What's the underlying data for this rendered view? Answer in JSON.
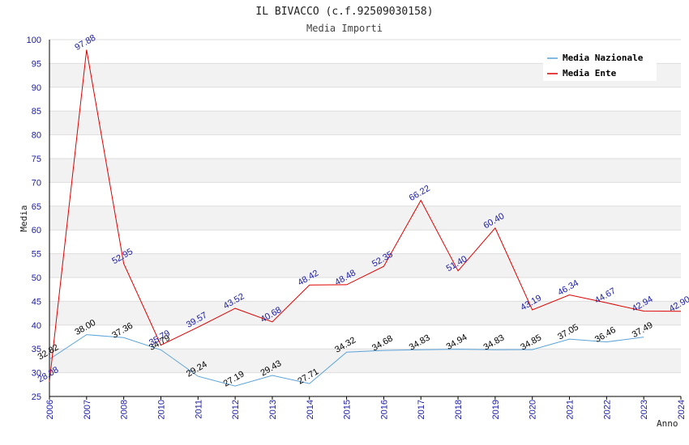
{
  "chart_data": {
    "type": "line",
    "title": "IL BIVACCO (c.f.92509030158)",
    "subtitle": "Media Importi",
    "xlabel": "Anno",
    "ylabel": "Media",
    "categories": [
      "2006",
      "2007",
      "2008",
      "2010",
      "2011",
      "2012",
      "2013",
      "2014",
      "2015",
      "2016",
      "2017",
      "2018",
      "2019",
      "2020",
      "2021",
      "2022",
      "2023",
      "2024"
    ],
    "yticks": [
      25,
      30,
      35,
      40,
      45,
      50,
      55,
      60,
      65,
      70,
      75,
      80,
      85,
      90,
      95,
      100
    ],
    "ylim": [
      25,
      100
    ],
    "grid": true,
    "legend_position": "top-right",
    "series": [
      {
        "name": "Media Nazionale",
        "color": "#5ba3d9",
        "label_color": "#000000",
        "values": [
          32.82,
          38.0,
          37.36,
          34.79,
          29.24,
          27.19,
          29.43,
          27.71,
          34.32,
          34.68,
          34.83,
          34.94,
          34.83,
          34.85,
          37.05,
          36.46,
          37.49,
          null
        ],
        "labels": [
          "32.82",
          "38.00",
          "37.36",
          "34.79",
          "29.24",
          "27.19",
          "29.43",
          "27.71",
          "34.32",
          "34.68",
          "34.83",
          "34.94",
          "34.83",
          "34.85",
          "37.05",
          "36.46",
          "37.49",
          ""
        ]
      },
      {
        "name": "Media Ente",
        "color": "#e00000",
        "label_color": "#1a1aa6",
        "values": [
          28.08,
          97.88,
          52.95,
          35.79,
          39.57,
          43.52,
          40.68,
          48.42,
          48.48,
          52.35,
          66.22,
          51.4,
          60.4,
          43.19,
          46.34,
          44.67,
          42.94,
          42.9
        ],
        "labels": [
          "28.08",
          "97.88",
          "52.95",
          "35.79",
          "39.57",
          "43.52",
          "40.68",
          "48.42",
          "48.48",
          "52.35",
          "66.22",
          "51.40",
          "60.40",
          "43.19",
          "46.34",
          "44.67",
          "42.94",
          "42.90"
        ]
      }
    ]
  }
}
